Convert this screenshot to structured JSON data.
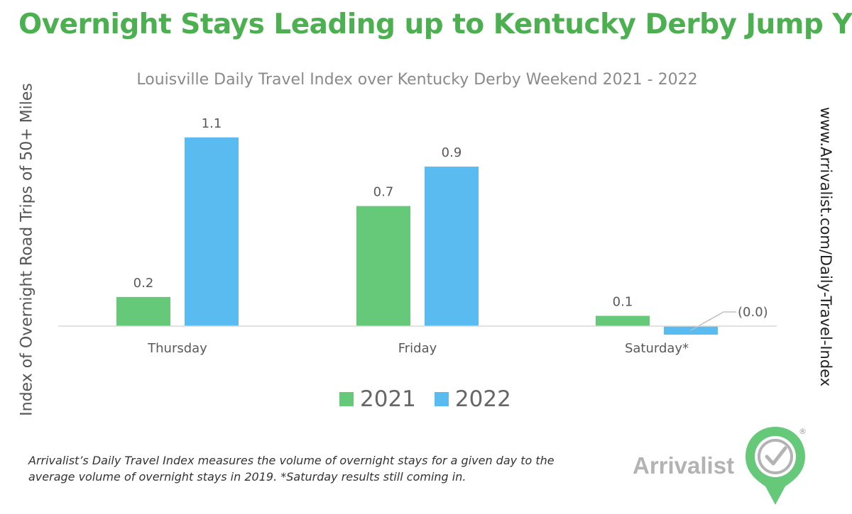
{
  "headline": "Overnight Stays Leading up to Kentucky Derby Jump Y/Y",
  "side_url": "www.Arrivalist.com/Daily-Travel-Index",
  "footnote": {
    "line1": "Arrivalist’s Daily Travel Index measures the volume of overnight stays for a given day to the",
    "line2": "average volume of overnight stays in 2019. *Saturday results still coming in."
  },
  "brand": {
    "name": "Arrivalist",
    "registered": "®",
    "logo_icon": "checkmark-map-pin-icon"
  },
  "colors": {
    "headline": "#4caf50",
    "series_2021": "#66c97a",
    "series_2022": "#59bbef",
    "brand_gray": "#b3b3b3"
  },
  "chart_data": {
    "type": "bar",
    "title": "Louisville Daily Travel Index over Kentucky Derby Weekend 2021 - 2022",
    "ylabel": "Index of Overnight Road Trips of 50+ Miles",
    "xlabel": "",
    "categories": [
      "Thursday",
      "Friday",
      "Saturday*"
    ],
    "series": [
      {
        "name": "2021",
        "values": [
          0.17,
          0.7,
          0.06
        ],
        "labels": [
          "0.2",
          "0.7",
          "0.1"
        ],
        "color": "#66c97a"
      },
      {
        "name": "2022",
        "values": [
          1.1,
          0.93,
          -0.05
        ],
        "labels": [
          "1.1",
          "0.9",
          "(0.0)"
        ],
        "color": "#59bbef"
      }
    ],
    "ylim": [
      -0.1,
      1.2
    ],
    "grid": false,
    "legend": "bottom-center"
  }
}
